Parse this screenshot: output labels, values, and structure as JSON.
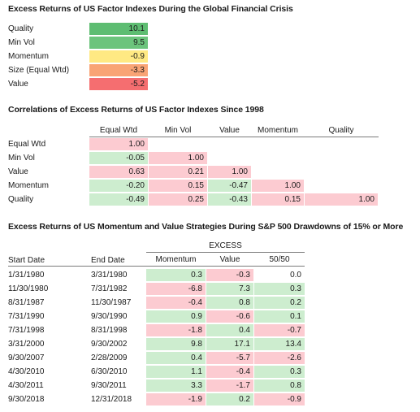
{
  "section1": {
    "title": "Excess Returns of US Factor Indexes During the Global Financial Crisis",
    "rows": [
      {
        "label": "Quality",
        "value": "10.1",
        "color": "#5ebd72"
      },
      {
        "label": "Min Vol",
        "value": "9.5",
        "color": "#6cc47c"
      },
      {
        "label": "Momentum",
        "value": "-0.9",
        "color": "#ffe983"
      },
      {
        "label": "Size (Equal Wtd)",
        "value": "-3.3",
        "color": "#f9a475"
      },
      {
        "label": "Value",
        "value": "-5.2",
        "color": "#f56e70"
      }
    ]
  },
  "section2": {
    "title": "Correlations of Excess Returns of US Factor Indexes Since 1998",
    "columns": [
      "Equal Wtd",
      "Min Vol",
      "Value",
      "Momentum",
      "Quality"
    ],
    "rows": [
      {
        "label": "Equal Wtd",
        "cells": [
          "1.00",
          "",
          "",
          "",
          ""
        ]
      },
      {
        "label": "Min Vol",
        "cells": [
          "-0.05",
          "1.00",
          "",
          "",
          ""
        ]
      },
      {
        "label": "Value",
        "cells": [
          "0.63",
          "0.21",
          "1.00",
          "",
          ""
        ]
      },
      {
        "label": "Momentum",
        "cells": [
          "-0.20",
          "0.15",
          "-0.47",
          "1.00",
          ""
        ]
      },
      {
        "label": "Quality",
        "cells": [
          "-0.49",
          "0.25",
          "-0.43",
          "0.15",
          "1.00"
        ]
      }
    ],
    "colors": {
      "positive": "#fccbd1",
      "negative": "#cdedcf"
    }
  },
  "section3": {
    "title": "Excess Returns of US Momentum and Value Strategies During S&P 500 Drawdowns of 15% or More",
    "group_header": "EXCESS",
    "columns": [
      "Start Date",
      "End Date",
      "Momentum",
      "Value",
      "50/50"
    ],
    "rows": [
      {
        "start": "1/31/1980",
        "end": "3/31/1980",
        "momentum": "0.3",
        "value": "-0.3",
        "fifty": "0.0"
      },
      {
        "start": "11/30/1980",
        "end": "7/31/1982",
        "momentum": "-6.8",
        "value": "7.3",
        "fifty": "0.3"
      },
      {
        "start": "8/31/1987",
        "end": "11/30/1987",
        "momentum": "-0.4",
        "value": "0.8",
        "fifty": "0.2"
      },
      {
        "start": "7/31/1990",
        "end": "9/30/1990",
        "momentum": "0.9",
        "value": "-0.6",
        "fifty": "0.1"
      },
      {
        "start": "7/31/1998",
        "end": "8/31/1998",
        "momentum": "-1.8",
        "value": "0.4",
        "fifty": "-0.7"
      },
      {
        "start": "3/31/2000",
        "end": "9/30/2002",
        "momentum": "9.8",
        "value": "17.1",
        "fifty": "13.4"
      },
      {
        "start": "9/30/2007",
        "end": "2/28/2009",
        "momentum": "0.4",
        "value": "-5.7",
        "fifty": "-2.6"
      },
      {
        "start": "4/30/2010",
        "end": "6/30/2010",
        "momentum": "1.1",
        "value": "-0.4",
        "fifty": "0.3"
      },
      {
        "start": "4/30/2011",
        "end": "9/30/2011",
        "momentum": "3.3",
        "value": "-1.7",
        "fifty": "0.8"
      },
      {
        "start": "9/30/2018",
        "end": "12/31/2018",
        "momentum": "-1.9",
        "value": "0.2",
        "fifty": "-0.9"
      }
    ],
    "colors": {
      "positive": "#cdedcf",
      "negative": "#fccbd1",
      "neutral": "#ffffff"
    }
  }
}
